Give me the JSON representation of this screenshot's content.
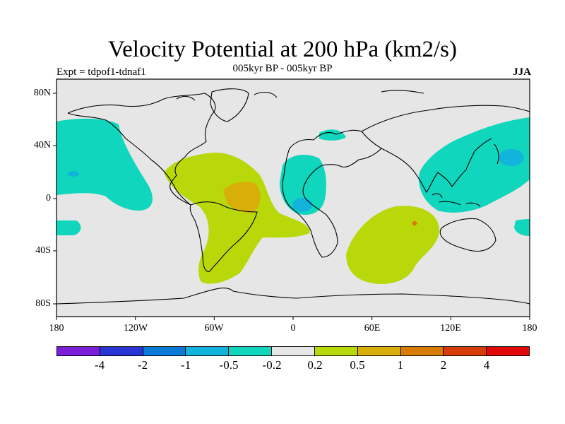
{
  "title": "Velocity Potential at 200 hPa (km2/s)",
  "subtitle": "005kyr BP - 005kyr BP",
  "expt": "Expt = tdpof1-tdnaf1",
  "season": "JJA",
  "map": {
    "background_color": "#e6e6e6",
    "lat_ticks": [
      "80N",
      "40N",
      "0",
      "40S",
      "80S"
    ],
    "lon_ticks": [
      "180",
      "120W",
      "60W",
      "0",
      "60E",
      "120E",
      "180"
    ]
  },
  "colorbar": {
    "colors": [
      "#7b1fd8",
      "#2a34d4",
      "#0a7ad8",
      "#12b4dc",
      "#0fd6bc",
      "#e6e6e6",
      "#b8d80a",
      "#d8ae08",
      "#d87c08",
      "#d83c08",
      "#e00808"
    ],
    "labels": [
      "-4",
      "-2",
      "-1",
      "-0.5",
      "-0.2",
      "0.2",
      "0.5",
      "1",
      "2",
      "4"
    ]
  }
}
